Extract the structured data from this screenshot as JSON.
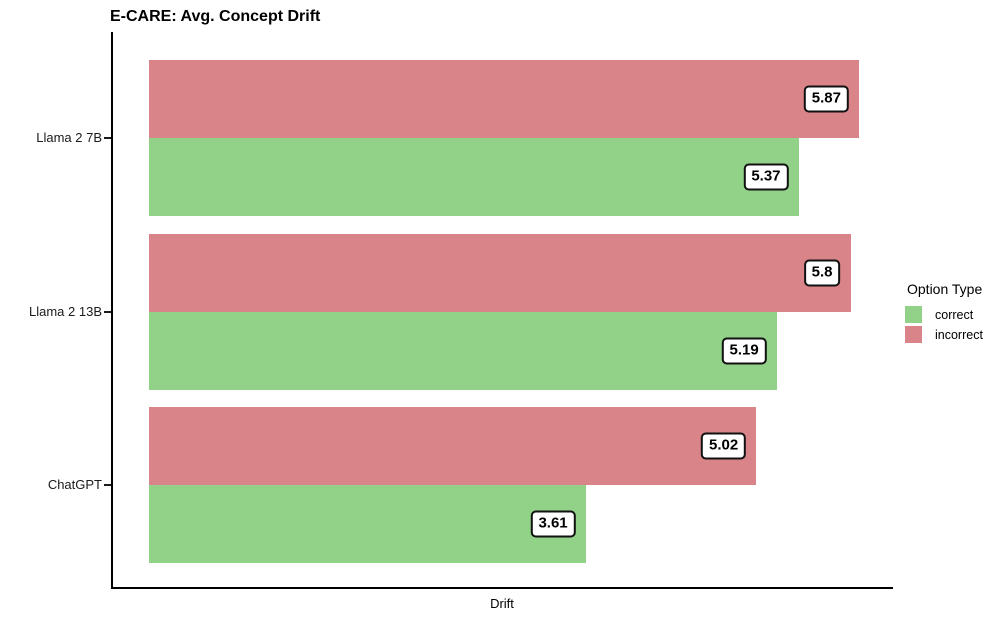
{
  "title": "E-CARE: Avg. Concept Drift",
  "x_axis_title": "Drift",
  "legend": {
    "title": "Option Type",
    "items": [
      {
        "label": "correct",
        "color": "#92D188"
      },
      {
        "label": "incorrect",
        "color": "#D88488"
      }
    ]
  },
  "colors": {
    "correct": "#92D188",
    "incorrect": "#D88488",
    "axis": "#000000",
    "label_box_bg": "#FFFFFF",
    "label_box_border": "#111111"
  },
  "chart_data": {
    "type": "bar",
    "orientation": "horizontal",
    "title": "E-CARE: Avg. Concept Drift",
    "xlabel": "Drift",
    "ylabel": "",
    "categories": [
      "Llama 2 7B",
      "Llama 2 13B",
      "ChatGPT"
    ],
    "series": [
      {
        "name": "incorrect",
        "color": "#D88488",
        "values": [
          5.87,
          5.8,
          5.02
        ],
        "value_labels": [
          "5.87",
          "5.8",
          "5.02"
        ]
      },
      {
        "name": "correct",
        "color": "#92D188",
        "values": [
          5.37,
          5.19,
          3.61
        ],
        "value_labels": [
          "5.37",
          "5.19",
          "3.61"
        ]
      }
    ],
    "xlim": [
      -0.29,
      6.16
    ],
    "grid": false,
    "x_tick_labels": [],
    "bar_value_labels": true,
    "legend_title": "Option Type",
    "legend_position": "right"
  }
}
